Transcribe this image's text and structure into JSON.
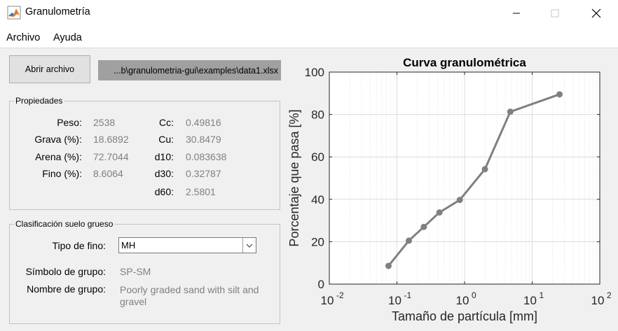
{
  "window": {
    "title": "Granulometría",
    "icon": "matlab-logo-icon",
    "minimize_icon": "minimize-icon",
    "maximize_icon": "maximize-icon",
    "close_icon": "close-icon"
  },
  "menu": {
    "items": [
      "Archivo",
      "Ayuda"
    ]
  },
  "toolbar": {
    "open_label": "Abrir archivo",
    "file_path": "...b\\granulometria-gui\\examples\\data1.xlsx"
  },
  "propiedades": {
    "title": "Propiedades",
    "left": [
      {
        "label": "Peso:",
        "value": "2538"
      },
      {
        "label": "Grava (%):",
        "value": "18.6892"
      },
      {
        "label": "Arena (%):",
        "value": "72.7044"
      },
      {
        "label": "Fino (%):",
        "value": "8.6064"
      }
    ],
    "right": [
      {
        "label": "Cc:",
        "value": "0.49816"
      },
      {
        "label": "Cu:",
        "value": "30.8479"
      },
      {
        "label": "d10:",
        "value": "0.083638"
      },
      {
        "label": "d30:",
        "value": "0.32787"
      },
      {
        "label": "d60:",
        "value": "2.5801"
      }
    ]
  },
  "clasificacion": {
    "title": "Clasificación suelo grueso",
    "tipo_fino_label": "Tipo de fino:",
    "tipo_fino_value": "MH",
    "simbolo_label": "Símbolo de grupo:",
    "simbolo_value": "SP-SM",
    "nombre_label": "Nombre de grupo:",
    "nombre_value": "Poorly graded sand with silt and gravel"
  },
  "colors": {
    "line": "#808080",
    "field_disabled": "#a0a0a0",
    "panel_bg": "#f0f0f0"
  },
  "chart_data": {
    "type": "line",
    "title": "Curva granulométrica",
    "xlabel": "Tamaño de partícula [mm]",
    "ylabel": "Porcentaje que pasa [%]",
    "x_scale": "log",
    "xlim": [
      0.01,
      100
    ],
    "ylim": [
      0,
      100
    ],
    "x_ticks": [
      {
        "base": "10",
        "exp": "-2"
      },
      {
        "base": "10",
        "exp": "-1"
      },
      {
        "base": "10",
        "exp": "0"
      },
      {
        "base": "10",
        "exp": "1"
      },
      {
        "base": "10",
        "exp": "2"
      }
    ],
    "y_ticks": [
      "0",
      "20",
      "40",
      "60",
      "80",
      "100"
    ],
    "grid": "on",
    "series": [
      {
        "x": [
          0.075,
          0.15,
          0.25,
          0.425,
          0.85,
          2.0,
          4.75,
          25.4
        ],
        "y": [
          8.6,
          20.5,
          27.0,
          33.8,
          39.7,
          54.2,
          81.3,
          89.5
        ]
      }
    ]
  }
}
